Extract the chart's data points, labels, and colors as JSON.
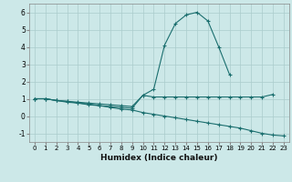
{
  "xlabel": "Humidex (Indice chaleur)",
  "x": [
    0,
    1,
    2,
    3,
    4,
    5,
    6,
    7,
    8,
    9,
    10,
    11,
    12,
    13,
    14,
    15,
    16,
    17,
    18,
    19,
    20,
    21,
    22,
    23
  ],
  "line1": [
    1.0,
    1.0,
    0.9,
    0.85,
    0.8,
    0.75,
    0.7,
    0.65,
    0.6,
    0.55,
    1.2,
    1.1,
    1.1,
    1.1,
    1.1,
    1.1,
    1.1,
    1.1,
    1.1,
    1.1,
    1.1,
    1.1,
    1.25,
    null
  ],
  "line2": [
    1.0,
    1.0,
    0.9,
    0.85,
    0.75,
    0.7,
    0.6,
    0.55,
    0.5,
    0.45,
    1.2,
    1.55,
    4.1,
    5.35,
    5.85,
    6.0,
    5.5,
    4.0,
    2.4,
    null,
    null,
    null,
    null,
    null
  ],
  "line3": [
    1.0,
    1.0,
    0.9,
    0.8,
    0.75,
    0.65,
    0.6,
    0.5,
    0.4,
    0.35,
    0.2,
    0.1,
    0.0,
    -0.1,
    -0.2,
    -0.3,
    -0.4,
    -0.5,
    -0.6,
    -0.7,
    -0.85,
    -1.0,
    -1.1,
    -1.15
  ],
  "bg_color": "#cce8e8",
  "line_color": "#1a6e6e",
  "grid_color": "#aacccc",
  "ylim": [
    -1.5,
    6.5
  ],
  "yticks": [
    -1,
    0,
    1,
    2,
    3,
    4,
    5,
    6
  ]
}
